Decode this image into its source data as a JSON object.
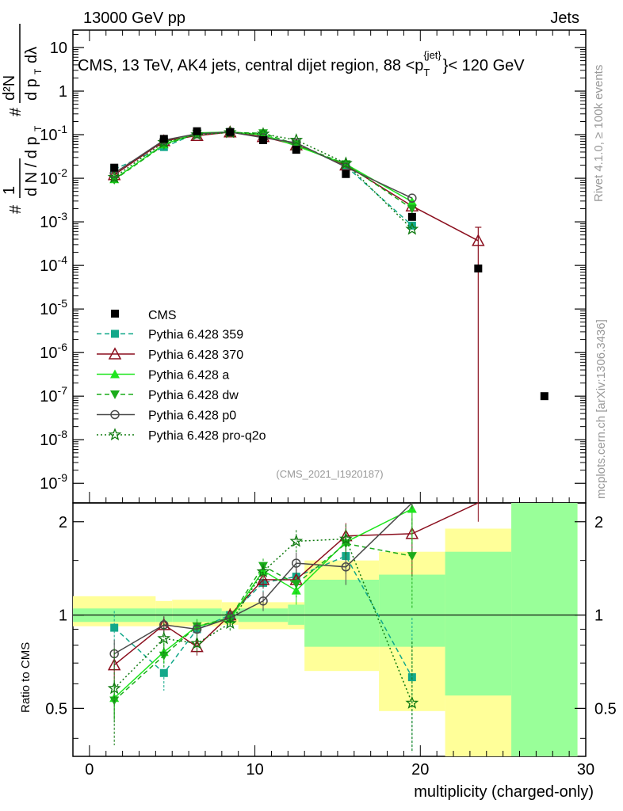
{
  "header": {
    "left": "13000 GeV pp",
    "right": "Jets",
    "rivet": "Rivet 4.1.0, ≥ 100k events",
    "mcplots": "mcplots.cern.ch [arXiv:1306.3436]",
    "watermark": "(CMS_2021_I1920187)"
  },
  "chart_data": {
    "type": "line",
    "title": "CMS, 13 TeV, AK4 jets, central dijet region, 88 < pT(jet) < 120 GeV",
    "title_parts": {
      "main": "CMS, 13 TeV, AK4 jets, central dijet region, 88 <p",
      "sup": "{jet}",
      "sub": "T",
      "end": "}< 120 GeV"
    },
    "ylabel_main": "1/N dN/dpT / d²N/dpT dλ",
    "ylabel_ratio": "Ratio to CMS",
    "xlabel": "multiplicity (charged-only)",
    "xlim": [
      -1,
      30
    ],
    "ylim_log": [
      -9.45,
      1.4
    ],
    "ratio_ylim": [
      0.35,
      2.3
    ],
    "x_ticks": [
      "0",
      "10",
      "20",
      "30"
    ],
    "y_ticks": [
      "10",
      "1",
      "10^-1",
      "10^-2",
      "10^-3",
      "10^-4",
      "10^-5",
      "10^-6",
      "10^-7",
      "10^-8",
      "10^-9"
    ],
    "ratio_ticks": [
      "0.5",
      "1",
      "2"
    ],
    "data": {
      "name": "CMS",
      "x": [
        1.5,
        4.5,
        6.5,
        8.5,
        10.5,
        12.5,
        15.5,
        19.5,
        23.5,
        27.5
      ],
      "y": [
        0.0175,
        0.08,
        0.12,
        0.115,
        0.075,
        0.045,
        0.0125,
        0.0013,
        8.5e-05,
        1e-07
      ],
      "err_x": [
        [
          -1,
          4
        ],
        [
          4,
          5
        ],
        [
          5,
          8
        ],
        [
          8,
          9
        ],
        [
          9,
          12
        ],
        [
          12,
          13
        ],
        [
          13,
          17.5
        ],
        [
          17.5,
          21.5
        ],
        [
          21.5,
          25.5
        ],
        [
          25.5,
          29.5
        ]
      ],
      "ratio_band_stat": [
        [
          0.95,
          1.05
        ],
        [
          0.95,
          1.05
        ],
        [
          0.95,
          1.05
        ],
        [
          0.97,
          1.03
        ],
        [
          0.95,
          1.05
        ],
        [
          0.93,
          1.08
        ],
        [
          0.79,
          1.3
        ],
        [
          0.79,
          1.35
        ],
        [
          0.55,
          1.6
        ],
        [
          0.3,
          2.5
        ]
      ],
      "ratio_band_tot": [
        [
          0.92,
          1.15
        ],
        [
          0.92,
          1.11
        ],
        [
          0.92,
          1.12
        ],
        [
          0.93,
          1.1
        ],
        [
          0.9,
          1.1
        ],
        [
          0.9,
          1.1
        ],
        [
          0.66,
          1.5
        ],
        [
          0.49,
          1.6
        ],
        [
          0.3,
          1.9
        ],
        [
          0.3,
          2.5
        ]
      ]
    },
    "series": [
      {
        "name": "Pythia 6.428 359",
        "color": "#13a88a",
        "dash": "6,4",
        "marker": "square",
        "x": [
          1.5,
          4.5,
          6.5,
          8.5,
          10.5,
          12.5,
          15.5,
          19.5
        ],
        "y": [
          0.016,
          0.052,
          0.108,
          0.115,
          0.095,
          0.06,
          0.019,
          0.00082
        ],
        "ratio": [
          0.91,
          0.65,
          0.9,
          1.0,
          1.27,
          1.33,
          1.55,
          0.63
        ],
        "ratio_err": [
          0.12,
          0.08,
          0.06,
          0.05,
          0.08,
          0.12,
          0.2,
          0.35
        ]
      },
      {
        "name": "Pythia 6.428 370",
        "color": "#8b0f1e",
        "dash": "",
        "marker": "triangle-open",
        "x": [
          1.5,
          4.5,
          6.5,
          8.5,
          10.5,
          12.5,
          15.5,
          19.5,
          23.5
        ],
        "y": [
          0.012,
          0.072,
          0.095,
          0.115,
          0.09,
          0.058,
          0.02,
          0.0023,
          0.00037
        ],
        "ratio": [
          0.69,
          0.93,
          0.79,
          1.0,
          1.3,
          1.3,
          1.8,
          1.83,
          4.0
        ],
        "ratio_err": [
          0.08,
          0.06,
          0.05,
          0.05,
          0.08,
          0.12,
          0.18,
          0.5,
          2.0
        ]
      },
      {
        "name": "Pythia 6.428 a",
        "color": "#1ee61e",
        "dash": "",
        "marker": "triangle",
        "x": [
          1.5,
          4.5,
          6.5,
          8.5,
          10.5,
          12.5,
          15.5,
          19.5
        ],
        "y": [
          0.0095,
          0.06,
          0.11,
          0.115,
          0.1,
          0.055,
          0.021,
          0.0029
        ],
        "ratio": [
          0.54,
          0.76,
          0.92,
          0.97,
          1.39,
          1.2,
          1.72,
          2.2
        ],
        "ratio_err": [
          0.08,
          0.06,
          0.05,
          0.05,
          0.08,
          0.12,
          0.18,
          0.5
        ]
      },
      {
        "name": "Pythia 6.428 dw",
        "color": "#1aab1a",
        "dash": "6,4",
        "marker": "triangle-down",
        "x": [
          1.5,
          4.5,
          6.5,
          8.5,
          10.5,
          12.5,
          15.5,
          19.5
        ],
        "y": [
          0.0092,
          0.058,
          0.105,
          0.113,
          0.108,
          0.06,
          0.021,
          0.002
        ],
        "ratio": [
          0.53,
          0.74,
          0.92,
          0.98,
          1.44,
          1.26,
          1.7,
          1.55
        ],
        "ratio_err": [
          0.08,
          0.06,
          0.05,
          0.05,
          0.08,
          0.12,
          0.18,
          0.5
        ]
      },
      {
        "name": "Pythia 6.428 p0",
        "color": "#4a4a4a",
        "dash": "",
        "marker": "circle-open",
        "x": [
          1.5,
          4.5,
          6.5,
          8.5,
          10.5,
          12.5,
          15.5,
          19.5
        ],
        "y": [
          0.013,
          0.075,
          0.105,
          0.115,
          0.085,
          0.065,
          0.018,
          0.0035
        ],
        "ratio": [
          0.75,
          0.93,
          0.9,
          0.98,
          1.11,
          1.47,
          1.43,
          2.7
        ],
        "ratio_err": [
          0.08,
          0.06,
          0.05,
          0.05,
          0.08,
          0.12,
          0.18,
          0.5
        ]
      },
      {
        "name": "Pythia 6.428 pro-q2o",
        "color": "#0f7a0f",
        "dash": "2,3",
        "marker": "star",
        "x": [
          1.5,
          4.5,
          6.5,
          8.5,
          10.5,
          12.5,
          15.5,
          19.5
        ],
        "y": [
          0.0105,
          0.067,
          0.1,
          0.112,
          0.104,
          0.075,
          0.022,
          0.00068
        ],
        "ratio": [
          0.58,
          0.84,
          0.81,
          0.94,
          1.38,
          1.73,
          1.76,
          0.52
        ],
        "ratio_err": [
          0.2,
          0.1,
          0.06,
          0.05,
          0.08,
          0.15,
          0.2,
          0.3
        ]
      }
    ]
  }
}
